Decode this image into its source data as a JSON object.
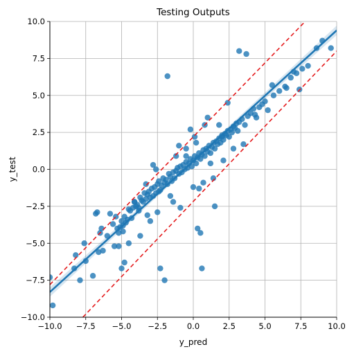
{
  "chart_data": {
    "type": "scatter",
    "title": "Testing Outputs",
    "xlabel": "y_pred",
    "ylabel": "y_test",
    "xlim": [
      -10,
      10
    ],
    "ylim": [
      -10,
      10
    ],
    "xticks": [
      -10,
      -7.5,
      -5,
      -2.5,
      0,
      2.5,
      5,
      7.5,
      10
    ],
    "yticks": [
      -10,
      -7.5,
      -5,
      -2.5,
      0,
      2.5,
      5,
      7.5,
      10
    ],
    "xtick_labels": [
      "−10.0",
      "−7.5",
      "−5.0",
      "−2.5",
      "0.0",
      "2.5",
      "5.0",
      "7.5",
      "10.0"
    ],
    "ytick_labels": [
      "−10.0",
      "−7.5",
      "−5.0",
      "−2.5",
      "0.0",
      "2.5",
      "5.0",
      "7.5",
      "10.0"
    ],
    "grid": true,
    "regression_line": {
      "x": [
        -10,
        10
      ],
      "y": [
        -8.3,
        9.4
      ]
    },
    "upper_bound_line": {
      "x": [
        -10,
        7.8
      ],
      "y": [
        -7.8,
        10
      ]
    },
    "lower_bound_line": {
      "x": [
        -7.7,
        10
      ],
      "y": [
        -10,
        8.0
      ]
    },
    "points": {
      "x": [
        -10.0,
        -9.8,
        -8.3,
        -8.2,
        -7.9,
        -7.6,
        -7.5,
        -7.0,
        -6.8,
        -6.6,
        -6.4,
        -6.3,
        -6.0,
        -5.8,
        -5.6,
        -5.5,
        -5.4,
        -5.3,
        -5.2,
        -5.1,
        -5.0,
        -4.9,
        -4.8,
        -4.7,
        -4.6,
        -4.5,
        -4.4,
        -4.3,
        -4.2,
        -4.1,
        -4.0,
        -3.9,
        -3.8,
        -3.7,
        -3.6,
        -3.5,
        -3.4,
        -3.3,
        -3.2,
        -3.1,
        -3.0,
        -2.9,
        -2.8,
        -2.7,
        -2.6,
        -2.5,
        -2.4,
        -2.3,
        -2.2,
        -2.1,
        -2.0,
        -1.9,
        -1.8,
        -1.7,
        -1.6,
        -1.5,
        -1.4,
        -1.3,
        -1.2,
        -1.1,
        -1.0,
        -0.9,
        -0.8,
        -0.7,
        -0.6,
        -0.5,
        -0.4,
        -0.3,
        -0.2,
        -0.1,
        0.0,
        0.1,
        0.2,
        0.3,
        0.4,
        0.5,
        0.6,
        0.7,
        0.8,
        0.9,
        1.0,
        1.1,
        1.2,
        1.3,
        1.4,
        1.5,
        1.6,
        1.7,
        1.8,
        1.9,
        2.0,
        2.1,
        2.2,
        2.3,
        2.4,
        2.5,
        2.6,
        2.7,
        2.8,
        2.9,
        3.0,
        3.1,
        3.2,
        3.4,
        3.6,
        3.8,
        4.0,
        4.2,
        4.4,
        4.6,
        4.8,
        5.0,
        5.2,
        5.6,
        6.0,
        6.4,
        6.8,
        7.2,
        7.6,
        8.0,
        8.6,
        9.0,
        -2.3,
        -2.0,
        -1.8,
        0.3,
        0.5,
        0.6,
        1.5,
        3.2,
        3.7,
        -6.7,
        -4.8,
        -4.5,
        -3.7,
        -3.0,
        -5.0,
        -4.9,
        -6.5,
        -5.2,
        -2.6,
        -2.8,
        -3.3,
        -1.2,
        -0.5,
        0.2,
        1.0,
        -1.4,
        -0.9,
        0.4,
        1.8,
        2.4,
        -0.2,
        0.8,
        2.0,
        2.8,
        3.5,
        -3.8,
        -4.1,
        -2.4,
        -1.6,
        0.0,
        1.2,
        2.1,
        0.7,
        4.3,
        5.5,
        6.5,
        7.4,
        7.0,
        9.6,
        -0.5,
        -1.0,
        0.1,
        -2.5,
        -3.2,
        1.4
      ],
      "y": [
        -7.3,
        -9.2,
        -6.7,
        -5.8,
        -7.5,
        -5.0,
        -6.2,
        -7.2,
        -3.0,
        -5.6,
        -4.0,
        -5.5,
        -4.5,
        -3.0,
        -3.7,
        -5.2,
        -3.2,
        -4.0,
        -4.3,
        -3.9,
        -3.5,
        -3.8,
        -3.2,
        -3.6,
        -3.4,
        -2.7,
        -2.8,
        -3.3,
        -2.6,
        -2.2,
        -2.5,
        -2.4,
        -2.8,
        -1.9,
        -2.1,
        -2.2,
        -1.6,
        -2.0,
        -1.7,
        -1.5,
        -1.9,
        -1.3,
        -1.8,
        -1.2,
        -1.6,
        -1.0,
        -0.8,
        -1.4,
        -1.1,
        -0.6,
        -0.9,
        -0.7,
        -1.0,
        -0.3,
        -0.5,
        -0.8,
        -0.2,
        -0.6,
        -0.1,
        0.1,
        -0.3,
        0.2,
        -0.2,
        0.3,
        0.0,
        0.5,
        0.1,
        0.4,
        0.7,
        0.2,
        0.6,
        0.9,
        0.4,
        0.8,
        1.1,
        0.7,
        1.0,
        1.3,
        0.9,
        1.4,
        1.2,
        1.6,
        1.1,
        1.5,
        1.8,
        1.4,
        1.9,
        1.7,
        2.1,
        1.8,
        2.2,
        2.0,
        2.4,
        2.3,
        2.6,
        2.2,
        2.7,
        2.5,
        2.9,
        2.8,
        3.1,
        2.6,
        3.2,
        3.4,
        3.0,
        3.6,
        3.8,
        4.1,
        3.5,
        4.2,
        4.4,
        4.6,
        4.0,
        5.0,
        5.3,
        5.6,
        6.2,
        6.5,
        6.8,
        7.0,
        8.2,
        8.7,
        -6.7,
        -7.5,
        6.3,
        -4.0,
        -4.3,
        -6.7,
        -2.5,
        8.0,
        7.8,
        -2.9,
        -6.3,
        -5.0,
        -4.5,
        -3.5,
        -6.7,
        -4.2,
        -4.3,
        -5.2,
        0.0,
        0.3,
        -1.0,
        0.9,
        1.4,
        1.8,
        3.5,
        -2.2,
        -2.6,
        -1.3,
        3.0,
        4.5,
        2.7,
        3.0,
        2.3,
        1.4,
        1.7,
        -2.6,
        -2.2,
        -1.5,
        -1.8,
        -1.2,
        0.4,
        0.6,
        -0.9,
        3.7,
        5.7,
        5.5,
        5.4,
        6.6,
        8.2,
        0.9,
        1.6,
        2.2,
        -2.9,
        -3.1,
        -0.6
      ]
    }
  }
}
